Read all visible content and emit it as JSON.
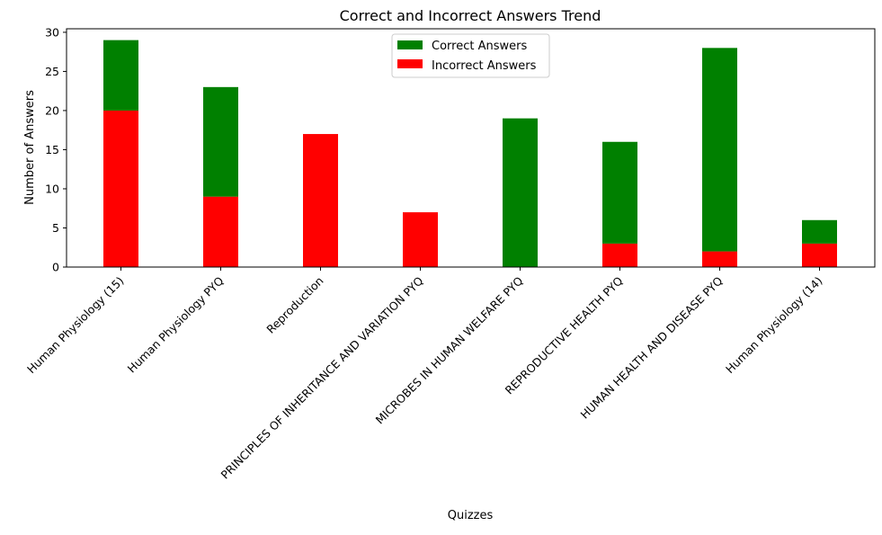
{
  "chart_data": {
    "type": "bar",
    "stacked": true,
    "title": "Correct and Incorrect Answers Trend",
    "xlabel": "Quizzes",
    "ylabel": "Number of Answers",
    "ylim": [
      0,
      30.45
    ],
    "yticks": [
      0,
      5,
      10,
      15,
      20,
      25,
      30
    ],
    "categories": [
      "Human Physiology (15)",
      "Human Physiology PYQ",
      "Reproduction",
      "PRINCIPLES OF INHERITANCE AND VARIATION PYQ",
      "MICROBES IN HUMAN WELFARE  PYQ",
      "REPRODUCTIVE HEALTH PYQ",
      "HUMAN HEALTH AND DISEASE PYQ",
      "Human Physiology (14)"
    ],
    "series": [
      {
        "name": "Correct Answers",
        "color": "#008000",
        "values": [
          9,
          14,
          0,
          0,
          19,
          13,
          26,
          3
        ]
      },
      {
        "name": "Incorrect Answers",
        "color": "#ff0000",
        "values": [
          20,
          9,
          17,
          7,
          0,
          3,
          2,
          3
        ]
      }
    ],
    "legend_position": "top-center",
    "grid": false
  }
}
